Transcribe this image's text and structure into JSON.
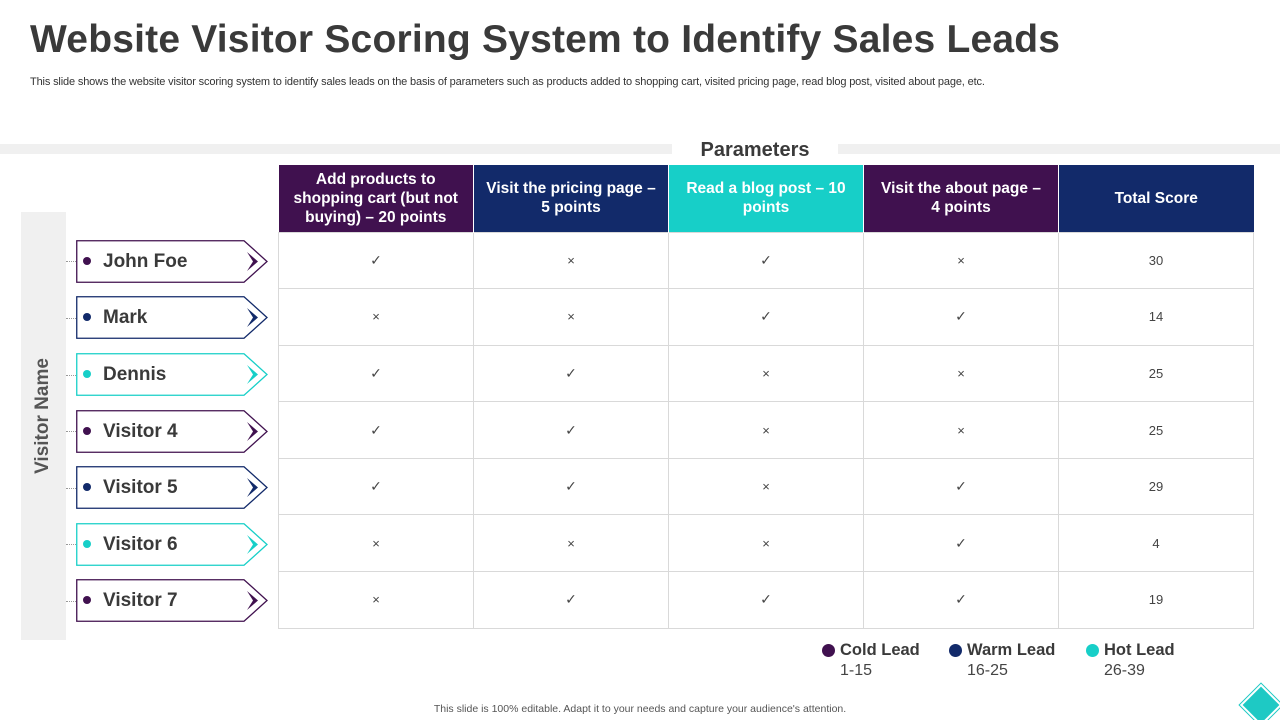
{
  "title": "Website Visitor Scoring System to Identify Sales Leads",
  "subtitle": "This slide shows the website visitor scoring system to identify sales leads on the basis of parameters such as products added to shopping cart, visited pricing page, read blog post, visited about page, etc.",
  "parameters_label": "Parameters",
  "visitor_name_label": "Visitor Name",
  "colors": {
    "purple": "#40114f",
    "navy": "#122a6a",
    "teal": "#17cfc8"
  },
  "table": {
    "headers": [
      {
        "label": "Add products to shopping cart (but not buying) – 20 points",
        "color": "#40114f"
      },
      {
        "label": "Visit the pricing page – 5 points",
        "color": "#122a6a"
      },
      {
        "label": "Read a blog post – 10 points",
        "color": "#17cfc8"
      },
      {
        "label": "Visit the about page – 4 points",
        "color": "#40114f"
      },
      {
        "label": "Total Score",
        "color": "#122a6a"
      }
    ],
    "rows": [
      {
        "name": "John Foe",
        "color": "#40114f",
        "marks": [
          "✓",
          "×",
          "✓",
          "×"
        ],
        "score": "30"
      },
      {
        "name": "Mark",
        "color": "#122a6a",
        "marks": [
          "×",
          "×",
          "✓",
          "✓"
        ],
        "score": "14"
      },
      {
        "name": "Dennis",
        "color": "#17cfc8",
        "marks": [
          "✓",
          "✓",
          "×",
          "×"
        ],
        "score": "25"
      },
      {
        "name": "Visitor 4",
        "color": "#40114f",
        "marks": [
          "✓",
          "✓",
          "×",
          "×"
        ],
        "score": "25"
      },
      {
        "name": "Visitor 5",
        "color": "#122a6a",
        "marks": [
          "✓",
          "✓",
          "×",
          "✓"
        ],
        "score": "29"
      },
      {
        "name": "Visitor 6",
        "color": "#17cfc8",
        "marks": [
          "×",
          "×",
          "×",
          "✓"
        ],
        "score": "4"
      },
      {
        "name": "Visitor 7",
        "color": "#40114f",
        "marks": [
          "×",
          "✓",
          "✓",
          "✓"
        ],
        "score": "19"
      }
    ]
  },
  "legend": [
    {
      "name": "Cold Lead",
      "range": "1-15",
      "color": "#40114f"
    },
    {
      "name": "Warm Lead",
      "range": "16-25",
      "color": "#122a6a"
    },
    {
      "name": "Hot Lead",
      "range": "26-39",
      "color": "#17cfc8"
    }
  ],
  "footer": "This slide is 100% editable. Adapt it to your needs and capture your audience's attention.",
  "icons": {
    "check": "check-mark-icon",
    "cross": "cross-mark-icon",
    "chevron": "chevron-right-icon",
    "corner": "diamond-logo-icon"
  }
}
